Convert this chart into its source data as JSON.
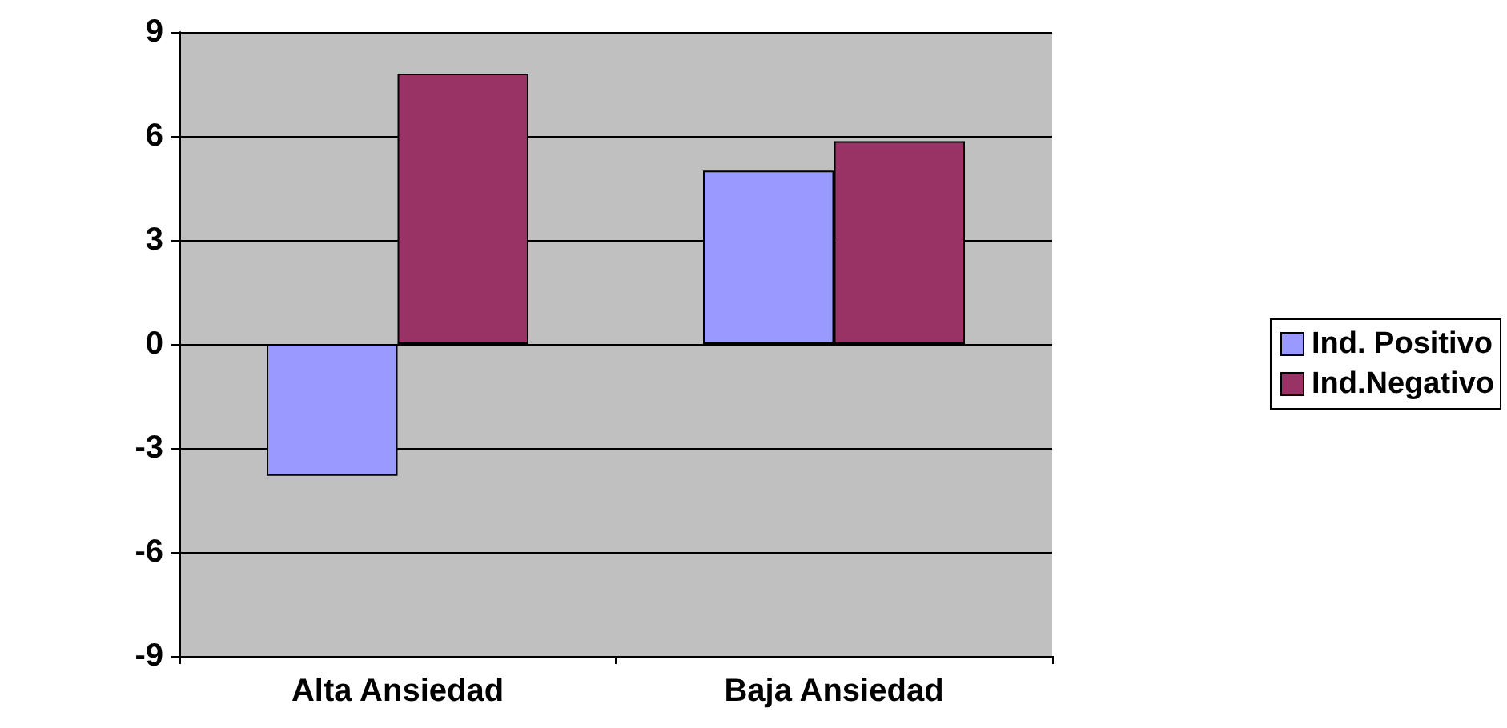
{
  "chart_data": {
    "type": "bar",
    "categories": [
      "Alta Ansiedad",
      "Baja Ansiedad"
    ],
    "series": [
      {
        "name": "Ind. Positivo",
        "color": "#9999ff",
        "values": [
          -3.8,
          5.0
        ]
      },
      {
        "name": "Ind.Negativo",
        "color": "#993366",
        "values": [
          7.8,
          5.85
        ]
      }
    ],
    "ylim": [
      -9,
      9
    ],
    "yticks": [
      -9,
      -6,
      -3,
      0,
      3,
      6,
      9
    ],
    "grid": "y",
    "legend": "right"
  }
}
